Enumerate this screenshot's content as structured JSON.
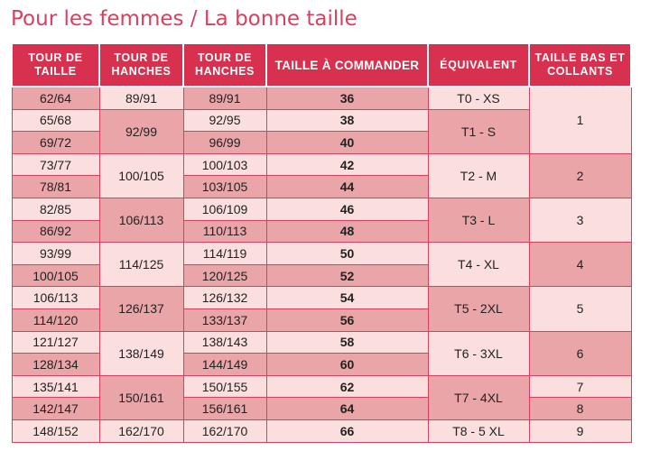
{
  "title": "Pour les femmes / La bonne taille",
  "headers": [
    "TOUR DE TAILLE",
    "TOUR DE HANCHES",
    "TOUR DE HANCHES",
    "TAILLE À COMMANDER",
    "ÉQUIVALENT",
    "TAILLE BAS ET COLLANTS"
  ],
  "rows": [
    {
      "c1": "62/64",
      "c2": "89/91",
      "c3": "89/91",
      "c4": "36",
      "c5": "T0 - XS",
      "c6": "1"
    },
    {
      "c1": "65/68",
      "c2": "92/99",
      "c3": "92/95",
      "c4": "38",
      "c5": "T1 - S"
    },
    {
      "c1": "69/72",
      "c3": "96/99",
      "c4": "40"
    },
    {
      "c1": "73/77",
      "c2": "100/105",
      "c3": "100/103",
      "c4": "42",
      "c5": "T2 - M",
      "c6": "2"
    },
    {
      "c1": "78/81",
      "c3": "103/105",
      "c4": "44"
    },
    {
      "c1": "82/85",
      "c2": "106/113",
      "c3": "106/109",
      "c4": "46",
      "c5": "T3 - L",
      "c6": "3"
    },
    {
      "c1": "86/92",
      "c3": "110/113",
      "c4": "48"
    },
    {
      "c1": "93/99",
      "c2": "114/125",
      "c3": "114/119",
      "c4": "50",
      "c5": "T4 - XL",
      "c6": "4"
    },
    {
      "c1": "100/105",
      "c3": "120/125",
      "c4": "52"
    },
    {
      "c1": "106/113",
      "c2": "126/137",
      "c3": "126/132",
      "c4": "54",
      "c5": "T5 - 2XL",
      "c6": "5"
    },
    {
      "c1": "114/120",
      "c3": "133/137",
      "c4": "56"
    },
    {
      "c1": "121/127",
      "c2": "138/149",
      "c3": "138/143",
      "c4": "58",
      "c5": "T6 - 3XL",
      "c6": "6"
    },
    {
      "c1": "128/134",
      "c3": "144/149",
      "c4": "60"
    },
    {
      "c1": "135/141",
      "c2": "150/161",
      "c3": "150/155",
      "c4": "62",
      "c5": "T7 - 4XL",
      "c6": "7"
    },
    {
      "c1": "142/147",
      "c3": "156/161",
      "c4": "64",
      "c6": "8"
    },
    {
      "c1": "148/152",
      "c2": "162/170",
      "c3": "162/170",
      "c4": "66",
      "c5": "T8 - 5 XL",
      "c6": "9"
    }
  ]
}
